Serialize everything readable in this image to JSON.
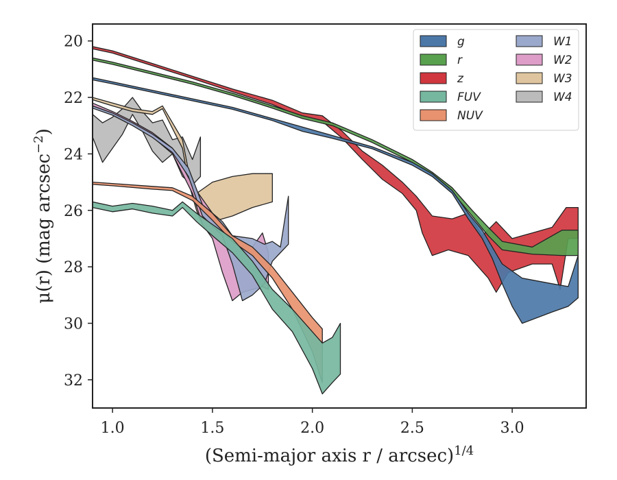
{
  "chart_data": {
    "type": "area",
    "xlabel": "(Semi-major axis r / arcsec)",
    "xlabel_exponent": "1/4",
    "ylabel": "μ(r) (mag arcsec",
    "ylabel_exponent": "−2",
    "ylabel_close": ")",
    "xlim": [
      0.9,
      3.37
    ],
    "ylim": [
      33.0,
      19.4
    ],
    "y_inverted": true,
    "xticks": [
      1.0,
      1.5,
      2.0,
      2.5,
      3.0
    ],
    "xtick_labels": [
      "1.0",
      "1.5",
      "2.0",
      "2.5",
      "3.0"
    ],
    "yticks": [
      20,
      22,
      24,
      26,
      28,
      30,
      32
    ],
    "ytick_labels": [
      "20",
      "22",
      "24",
      "26",
      "28",
      "30",
      "32"
    ],
    "grid": false,
    "legend_placement": "top-right",
    "legend_columns": 2,
    "series": [
      {
        "name": "g",
        "color": "#4c78a8",
        "upper": [
          [
            0.9,
            21.3
          ],
          [
            1.0,
            21.45
          ],
          [
            1.2,
            21.75
          ],
          [
            1.4,
            22.05
          ],
          [
            1.6,
            22.35
          ],
          [
            1.8,
            22.75
          ],
          [
            1.95,
            23.05
          ],
          [
            2.1,
            23.35
          ],
          [
            2.3,
            23.75
          ],
          [
            2.5,
            24.3
          ],
          [
            2.6,
            24.7
          ],
          [
            2.7,
            25.3
          ],
          [
            2.78,
            26.1
          ],
          [
            2.85,
            26.7
          ],
          [
            2.9,
            27.3
          ],
          [
            2.95,
            27.9
          ],
          [
            3.05,
            28.4
          ],
          [
            3.2,
            28.6
          ],
          [
            3.28,
            28.7
          ],
          [
            3.33,
            27.6
          ]
        ],
        "lower": [
          [
            0.9,
            21.38
          ],
          [
            1.0,
            21.52
          ],
          [
            1.2,
            21.82
          ],
          [
            1.4,
            22.12
          ],
          [
            1.6,
            22.42
          ],
          [
            1.8,
            22.82
          ],
          [
            1.95,
            23.2
          ],
          [
            2.1,
            23.45
          ],
          [
            2.3,
            23.82
          ],
          [
            2.5,
            24.4
          ],
          [
            2.6,
            24.8
          ],
          [
            2.7,
            25.4
          ],
          [
            2.78,
            26.3
          ],
          [
            2.85,
            27.0
          ],
          [
            2.9,
            27.7
          ],
          [
            2.95,
            28.6
          ],
          [
            3.0,
            29.4
          ],
          [
            3.05,
            30.0
          ],
          [
            3.2,
            29.6
          ],
          [
            3.28,
            29.4
          ],
          [
            3.33,
            29.1
          ]
        ]
      },
      {
        "name": "r",
        "color": "#59a14f",
        "upper": [
          [
            0.9,
            20.6
          ],
          [
            1.0,
            20.75
          ],
          [
            1.2,
            21.1
          ],
          [
            1.4,
            21.45
          ],
          [
            1.6,
            21.85
          ],
          [
            1.8,
            22.3
          ],
          [
            1.95,
            22.65
          ],
          [
            2.1,
            22.9
          ],
          [
            2.3,
            23.5
          ],
          [
            2.5,
            24.2
          ],
          [
            2.6,
            24.65
          ],
          [
            2.7,
            25.2
          ],
          [
            2.8,
            26.0
          ],
          [
            2.88,
            26.6
          ],
          [
            2.95,
            27.1
          ],
          [
            3.1,
            27.3
          ],
          [
            3.25,
            26.7
          ],
          [
            3.33,
            26.7
          ]
        ],
        "lower": [
          [
            0.9,
            20.68
          ],
          [
            1.0,
            20.83
          ],
          [
            1.2,
            21.18
          ],
          [
            1.4,
            21.53
          ],
          [
            1.6,
            21.93
          ],
          [
            1.8,
            22.38
          ],
          [
            1.95,
            22.75
          ],
          [
            2.1,
            23.0
          ],
          [
            2.3,
            23.6
          ],
          [
            2.5,
            24.3
          ],
          [
            2.6,
            24.75
          ],
          [
            2.7,
            25.35
          ],
          [
            2.8,
            26.2
          ],
          [
            2.88,
            26.9
          ],
          [
            2.95,
            27.4
          ],
          [
            3.1,
            27.55
          ],
          [
            3.25,
            27.6
          ],
          [
            3.33,
            27.6
          ]
        ]
      },
      {
        "name": "z",
        "color": "#d1373f",
        "upper": [
          [
            0.9,
            20.2
          ],
          [
            1.0,
            20.35
          ],
          [
            1.2,
            20.8
          ],
          [
            1.4,
            21.25
          ],
          [
            1.6,
            21.7
          ],
          [
            1.8,
            22.1
          ],
          [
            1.95,
            22.55
          ],
          [
            2.05,
            22.65
          ],
          [
            2.15,
            23.2
          ],
          [
            2.25,
            23.9
          ],
          [
            2.35,
            24.4
          ],
          [
            2.45,
            25.0
          ],
          [
            2.52,
            25.5
          ],
          [
            2.6,
            26.2
          ],
          [
            2.7,
            26.3
          ],
          [
            2.78,
            26.1
          ],
          [
            2.85,
            26.9
          ],
          [
            2.92,
            26.4
          ],
          [
            3.0,
            27.0
          ],
          [
            3.1,
            26.8
          ],
          [
            3.2,
            26.6
          ],
          [
            3.27,
            25.9
          ],
          [
            3.33,
            25.9
          ]
        ],
        "lower": [
          [
            0.9,
            20.28
          ],
          [
            1.0,
            20.43
          ],
          [
            1.2,
            20.88
          ],
          [
            1.4,
            21.33
          ],
          [
            1.6,
            21.8
          ],
          [
            1.8,
            22.25
          ],
          [
            1.95,
            22.7
          ],
          [
            2.05,
            22.85
          ],
          [
            2.15,
            23.45
          ],
          [
            2.25,
            24.2
          ],
          [
            2.35,
            24.9
          ],
          [
            2.45,
            25.4
          ],
          [
            2.52,
            26.0
          ],
          [
            2.55,
            26.8
          ],
          [
            2.6,
            27.6
          ],
          [
            2.68,
            27.4
          ],
          [
            2.78,
            27.6
          ],
          [
            2.88,
            28.4
          ],
          [
            2.92,
            28.9
          ],
          [
            2.98,
            28.2
          ],
          [
            3.1,
            27.9
          ],
          [
            3.2,
            27.9
          ],
          [
            3.24,
            28.8
          ],
          [
            3.28,
            27.0
          ],
          [
            3.33,
            27.0
          ]
        ]
      },
      {
        "name": "FUV",
        "color": "#76b7a0",
        "upper": [
          [
            0.9,
            25.7
          ],
          [
            1.0,
            25.85
          ],
          [
            1.1,
            25.75
          ],
          [
            1.2,
            25.85
          ],
          [
            1.3,
            26.0
          ],
          [
            1.35,
            25.7
          ],
          [
            1.42,
            26.1
          ],
          [
            1.5,
            26.5
          ],
          [
            1.6,
            27.0
          ],
          [
            1.7,
            27.8
          ],
          [
            1.8,
            28.8
          ],
          [
            1.9,
            29.5
          ],
          [
            2.0,
            30.3
          ],
          [
            2.05,
            30.7
          ],
          [
            2.1,
            30.5
          ],
          [
            2.14,
            30.0
          ]
        ],
        "lower": [
          [
            0.9,
            25.9
          ],
          [
            1.0,
            26.05
          ],
          [
            1.1,
            25.95
          ],
          [
            1.2,
            26.1
          ],
          [
            1.3,
            26.2
          ],
          [
            1.35,
            25.9
          ],
          [
            1.42,
            26.4
          ],
          [
            1.5,
            26.9
          ],
          [
            1.6,
            27.5
          ],
          [
            1.7,
            28.3
          ],
          [
            1.8,
            29.5
          ],
          [
            1.9,
            30.3
          ],
          [
            2.0,
            31.6
          ],
          [
            2.05,
            32.5
          ],
          [
            2.1,
            32.1
          ],
          [
            2.14,
            31.8
          ]
        ]
      },
      {
        "name": "NUV",
        "color": "#e8926f",
        "upper": [
          [
            0.9,
            25.0
          ],
          [
            1.0,
            25.05
          ],
          [
            1.2,
            25.15
          ],
          [
            1.3,
            25.2
          ],
          [
            1.4,
            25.5
          ],
          [
            1.5,
            26.1
          ],
          [
            1.6,
            26.9
          ],
          [
            1.7,
            27.3
          ],
          [
            1.8,
            28.0
          ],
          [
            1.9,
            28.9
          ],
          [
            2.0,
            29.8
          ],
          [
            2.05,
            30.2
          ]
        ],
        "lower": [
          [
            0.9,
            25.08
          ],
          [
            1.0,
            25.13
          ],
          [
            1.2,
            25.25
          ],
          [
            1.3,
            25.3
          ],
          [
            1.4,
            25.65
          ],
          [
            1.5,
            26.35
          ],
          [
            1.6,
            27.1
          ],
          [
            1.7,
            27.6
          ],
          [
            1.8,
            28.4
          ],
          [
            1.9,
            29.5
          ],
          [
            2.0,
            31.0
          ],
          [
            2.05,
            32.1
          ]
        ]
      },
      {
        "name": "W1",
        "color": "#9aa8cb",
        "upper": [
          [
            0.9,
            22.3
          ],
          [
            1.0,
            22.55
          ],
          [
            1.1,
            22.9
          ],
          [
            1.2,
            23.3
          ],
          [
            1.3,
            23.8
          ],
          [
            1.38,
            24.5
          ],
          [
            1.45,
            25.8
          ],
          [
            1.55,
            26.4
          ],
          [
            1.6,
            26.9
          ],
          [
            1.7,
            27.0
          ],
          [
            1.76,
            27.2
          ],
          [
            1.8,
            27.1
          ],
          [
            1.84,
            27.3
          ],
          [
            1.88,
            25.5
          ]
        ],
        "lower": [
          [
            0.9,
            22.38
          ],
          [
            1.0,
            22.63
          ],
          [
            1.1,
            23.0
          ],
          [
            1.2,
            23.42
          ],
          [
            1.3,
            23.95
          ],
          [
            1.38,
            24.8
          ],
          [
            1.45,
            26.2
          ],
          [
            1.55,
            26.9
          ],
          [
            1.6,
            27.9
          ],
          [
            1.65,
            29.2
          ],
          [
            1.7,
            29.0
          ],
          [
            1.76,
            28.6
          ],
          [
            1.8,
            27.8
          ],
          [
            1.84,
            27.5
          ],
          [
            1.88,
            27.2
          ]
        ]
      },
      {
        "name": "W2",
        "color": "#dd9dc8",
        "upper": [
          [
            0.9,
            22.2
          ],
          [
            1.0,
            22.5
          ],
          [
            1.1,
            22.85
          ],
          [
            1.2,
            23.25
          ],
          [
            1.3,
            23.8
          ],
          [
            1.4,
            25.1
          ],
          [
            1.5,
            26.1
          ],
          [
            1.6,
            26.9
          ],
          [
            1.65,
            27.1
          ],
          [
            1.7,
            27.3
          ],
          [
            1.75,
            26.8
          ],
          [
            1.78,
            27.5
          ]
        ],
        "lower": [
          [
            0.9,
            22.3
          ],
          [
            1.0,
            22.6
          ],
          [
            1.1,
            22.95
          ],
          [
            1.2,
            23.4
          ],
          [
            1.3,
            24.0
          ],
          [
            1.4,
            25.4
          ],
          [
            1.45,
            26.5
          ],
          [
            1.5,
            27.0
          ],
          [
            1.55,
            28.2
          ],
          [
            1.6,
            29.2
          ],
          [
            1.65,
            28.9
          ],
          [
            1.7,
            28.8
          ],
          [
            1.75,
            28.7
          ],
          [
            1.78,
            28.8
          ]
        ]
      },
      {
        "name": "W3",
        "color": "#dfc59f",
        "upper": [
          [
            0.9,
            22.0
          ],
          [
            1.0,
            22.2
          ],
          [
            1.1,
            22.4
          ],
          [
            1.2,
            22.5
          ],
          [
            1.25,
            22.3
          ],
          [
            1.3,
            22.9
          ],
          [
            1.35,
            23.5
          ],
          [
            1.38,
            24.6
          ],
          [
            1.42,
            25.4
          ],
          [
            1.5,
            25.0
          ],
          [
            1.6,
            24.8
          ],
          [
            1.7,
            24.7
          ],
          [
            1.8,
            24.7
          ]
        ],
        "lower": [
          [
            0.9,
            22.08
          ],
          [
            1.0,
            22.3
          ],
          [
            1.1,
            22.5
          ],
          [
            1.2,
            22.6
          ],
          [
            1.25,
            22.4
          ],
          [
            1.3,
            23.1
          ],
          [
            1.35,
            23.8
          ],
          [
            1.38,
            25.0
          ],
          [
            1.42,
            26.0
          ],
          [
            1.45,
            26.5
          ],
          [
            1.5,
            26.4
          ],
          [
            1.6,
            26.2
          ],
          [
            1.7,
            25.9
          ],
          [
            1.8,
            25.7
          ]
        ]
      },
      {
        "name": "W4",
        "color": "#bbbbbb",
        "upper": [
          [
            0.9,
            22.6
          ],
          [
            0.95,
            22.9
          ],
          [
            1.0,
            22.7
          ],
          [
            1.05,
            22.4
          ],
          [
            1.1,
            22.0
          ],
          [
            1.15,
            22.5
          ],
          [
            1.2,
            22.9
          ],
          [
            1.25,
            22.8
          ],
          [
            1.3,
            23.5
          ],
          [
            1.35,
            23.4
          ],
          [
            1.4,
            24.2
          ],
          [
            1.44,
            23.4
          ]
        ],
        "lower": [
          [
            0.9,
            23.4
          ],
          [
            0.95,
            24.3
          ],
          [
            1.0,
            23.8
          ],
          [
            1.05,
            23.3
          ],
          [
            1.1,
            22.6
          ],
          [
            1.15,
            23.2
          ],
          [
            1.2,
            23.9
          ],
          [
            1.25,
            24.3
          ],
          [
            1.3,
            24.0
          ],
          [
            1.35,
            24.8
          ],
          [
            1.4,
            25.1
          ],
          [
            1.44,
            24.8
          ]
        ]
      }
    ]
  }
}
